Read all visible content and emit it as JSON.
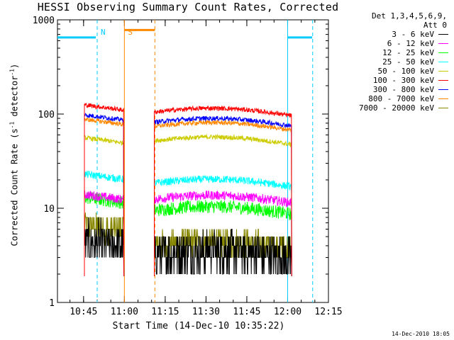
{
  "chart_data": {
    "type": "line",
    "title": "HESSI Observing Summary Count Rates, Corrected",
    "xlabel": "Start Time (14-Dec-10 10:35:22)",
    "ylabel_main": "Corrected Count Rate (s",
    "ylabel_sup1": "-1",
    "ylabel_mid": " detector",
    "ylabel_sup2": "-1",
    "ylabel_end": ")",
    "yscale": "log",
    "ylim": [
      1,
      1000
    ],
    "xlim_minutes": [
      35.4,
      135.0
    ],
    "x_ticks": [
      {
        "minute": 45,
        "label": "10:45"
      },
      {
        "minute": 60,
        "label": "11:00"
      },
      {
        "minute": 75,
        "label": "11:15"
      },
      {
        "minute": 90,
        "label": "11:30"
      },
      {
        "minute": 105,
        "label": "11:45"
      },
      {
        "minute": 120,
        "label": "12:00"
      },
      {
        "minute": 135,
        "label": "12:15"
      }
    ],
    "y_ticks": [
      {
        "value": 1,
        "label": "1"
      },
      {
        "value": 10,
        "label": "10"
      },
      {
        "value": 100,
        "label": "100"
      },
      {
        "value": 1000,
        "label": "1000"
      }
    ],
    "legend_header": [
      "Det 1,3,4,5,6,9,",
      "Att 0"
    ],
    "series": [
      {
        "name": "3 - 6 keV",
        "color": "#000000",
        "before": 4.5,
        "after": 3.2,
        "noise": 0.22
      },
      {
        "name": "6 - 12 keV",
        "color": "#ff00ff",
        "before": 14,
        "after": 12.5,
        "noise": 0.05
      },
      {
        "name": "12 - 25 keV",
        "color": "#00ff00",
        "before": 13,
        "after": 9.5,
        "noise": 0.07
      },
      {
        "name": "25 - 50 keV",
        "color": "#00ffff",
        "before": 23,
        "after": 18.5,
        "noise": 0.04
      },
      {
        "name": "50 - 100 keV",
        "color": "#cccc00",
        "before": 56,
        "after": 52,
        "noise": 0.025
      },
      {
        "name": "100 - 300 keV",
        "color": "#ff0000",
        "before": 125,
        "after": 105,
        "noise": 0.025
      },
      {
        "name": "300 - 800 keV",
        "color": "#0000ff",
        "before": 98,
        "after": 82,
        "noise": 0.025
      },
      {
        "name": "800 - 7000 keV",
        "color": "#ff8800",
        "before": 88,
        "after": 74,
        "noise": 0.025
      },
      {
        "name": "7000 - 20000 keV",
        "color": "#888800",
        "before": 6.5,
        "after": 4.0,
        "noise": 0.14
      }
    ],
    "segments": [
      {
        "start_minute": 45.3,
        "end_minute": 59.8
      },
      {
        "start_minute": 71.0,
        "end_minute": 121.5
      }
    ],
    "markers": [
      {
        "label": "N",
        "color": "#00ccff",
        "minute": 50.0,
        "style": "dashed"
      },
      {
        "label": "S",
        "color": "#ff8800",
        "minute": 60.0,
        "style": "solid"
      },
      {
        "label": "",
        "color": "#ff8800",
        "minute": 71.2,
        "style": "dashed"
      },
      {
        "label": "",
        "color": "#00ccff",
        "minute": 120.0,
        "style": "solid"
      },
      {
        "label": "",
        "color": "#00ccff",
        "minute": 129.2,
        "style": "dashed"
      }
    ],
    "night_bars": [
      {
        "color": "#00ccff",
        "start_minute": 35.4,
        "end_minute": 49.5,
        "value": 650
      },
      {
        "color": "#00ccff",
        "start_minute": 120.0,
        "end_minute": 129.0,
        "value": 650
      },
      {
        "color": "#ff8800",
        "start_minute": 60.0,
        "end_minute": 71.2,
        "value": 780
      }
    ]
  },
  "footer": "14-Dec-2010 18:05"
}
